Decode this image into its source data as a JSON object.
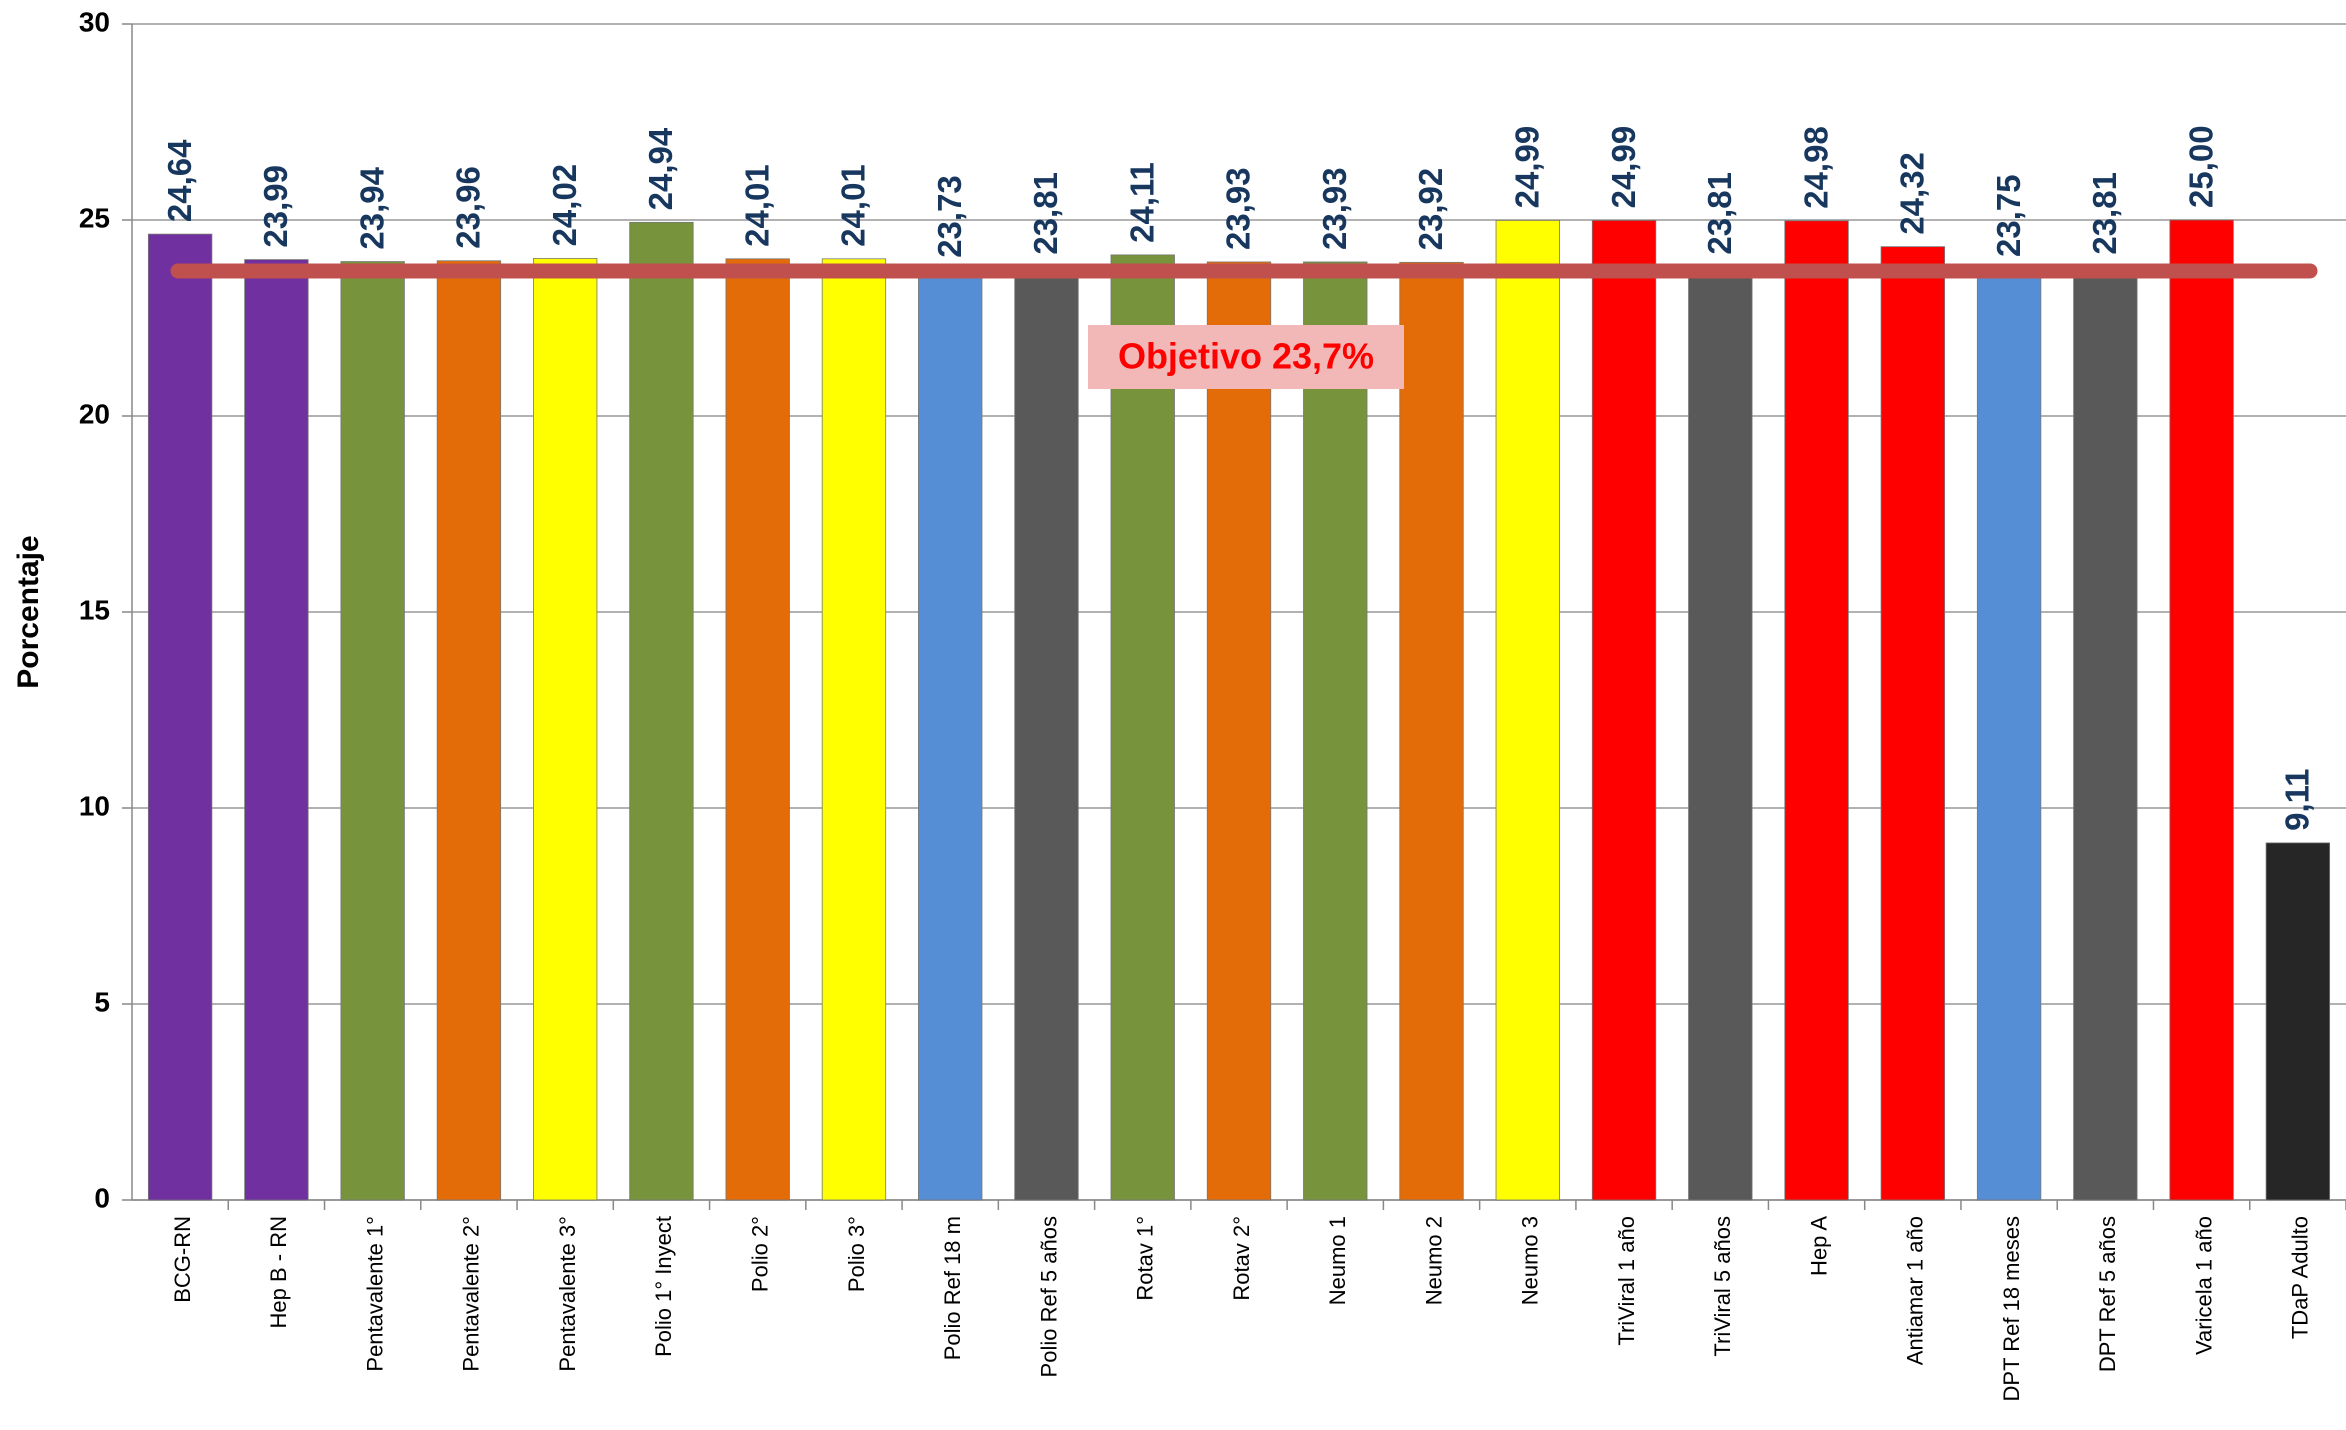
{
  "chart_data": {
    "type": "bar",
    "y_label": "Porcentaje",
    "categories": [
      "BCG-RN",
      "Hep B - RN",
      "Pentavalente 1°",
      "Pentavalente 2°",
      "Pentavalente 3°",
      "Polio 1° Inyect",
      "Polio 2°",
      "Polio 3°",
      "Polio Ref 18 m",
      "Polio Ref 5 años",
      "Rotav 1°",
      "Rotav 2°",
      "Neumo 1",
      "Neumo 2",
      "Neumo 3",
      "TriViral 1 año",
      "TriViral 5 años",
      "Hep A",
      "Antiamar 1 año",
      "DPT Ref 18 meses",
      "DPT Ref 5 años",
      "Varicela 1 año",
      "TDaP Adulto"
    ],
    "values": [
      24.64,
      23.99,
      23.94,
      23.96,
      24.02,
      24.94,
      24.01,
      24.01,
      23.73,
      23.81,
      24.11,
      23.93,
      23.93,
      23.92,
      24.99,
      24.99,
      23.81,
      24.98,
      24.32,
      23.75,
      23.81,
      25.0,
      9.11
    ],
    "value_labels": [
      "24,64",
      "23,99",
      "23,94",
      "23,96",
      "24,02",
      "24,94",
      "24,01",
      "24,01",
      "23,73",
      "23,81",
      "24,11",
      "23,93",
      "23,93",
      "23,92",
      "24,99",
      "24,99",
      "23,81",
      "24,98",
      "24,32",
      "23,75",
      "23,81",
      "25,00",
      "9,11"
    ],
    "colors": [
      "#7030a0",
      "#7030a0",
      "#77933c",
      "#e36c09",
      "#ffff00",
      "#77933c",
      "#e36c09",
      "#ffff00",
      "#558ed5",
      "#595959",
      "#77933c",
      "#e36c09",
      "#77933c",
      "#e36c09",
      "#ffff00",
      "#ff0000",
      "#595959",
      "#ff0000",
      "#ff0000",
      "#558ed5",
      "#595959",
      "#ff0000",
      "#262626"
    ],
    "ylim": [
      0,
      30
    ],
    "yticks": [
      0,
      5,
      10,
      15,
      20,
      25,
      30
    ],
    "grid": true,
    "target": 23.7,
    "target_color": "#c0504d",
    "target_label": "Objetivo 23,7%"
  }
}
